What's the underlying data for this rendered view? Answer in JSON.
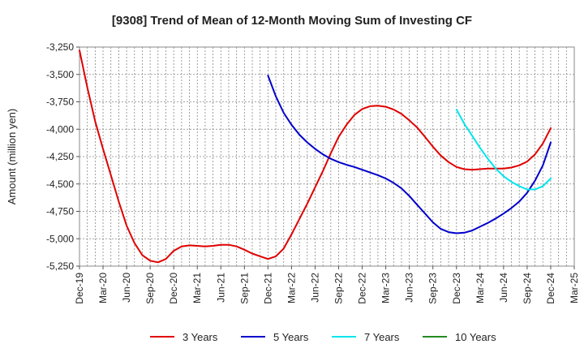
{
  "chart_data": {
    "type": "line",
    "title": "[9308]  Trend of Mean of 12-Month Moving Sum of Investing CF",
    "xlabel": "",
    "ylabel": "Amount (million yen)",
    "ylim": [
      -5250,
      -3250
    ],
    "yticks": [
      -3250,
      -3500,
      -3750,
      -4000,
      -4250,
      -4500,
      -4750,
      -5000,
      -5250
    ],
    "ytick_labels": [
      "-3,250",
      "-3,500",
      "-3,750",
      "-4,000",
      "-4,250",
      "-4,500",
      "-4,750",
      "-5,000",
      "-5,250"
    ],
    "x_start": "2019-12",
    "x_end": "2025-03",
    "xtick_labels": [
      "Dec-19",
      "Mar-20",
      "Jun-20",
      "Sep-20",
      "Dec-20",
      "Mar-21",
      "Jun-21",
      "Sep-21",
      "Dec-21",
      "Mar-22",
      "Jun-22",
      "Sep-22",
      "Dec-22",
      "Mar-23",
      "Jun-23",
      "Sep-23",
      "Dec-23",
      "Mar-24",
      "Jun-24",
      "Sep-24",
      "Dec-24",
      "Mar-25"
    ],
    "grid": true,
    "legend_position": "bottom",
    "series": [
      {
        "name": "3 Years",
        "color": "#e00000",
        "x": [
          "2019-12",
          "2020-01",
          "2020-02",
          "2020-03",
          "2020-04",
          "2020-05",
          "2020-06",
          "2020-07",
          "2020-08",
          "2020-09",
          "2020-10",
          "2020-11",
          "2020-12",
          "2021-01",
          "2021-02",
          "2021-03",
          "2021-04",
          "2021-05",
          "2021-06",
          "2021-07",
          "2021-08",
          "2021-09",
          "2021-10",
          "2021-11",
          "2021-12",
          "2022-01",
          "2022-02",
          "2022-03",
          "2022-04",
          "2022-05",
          "2022-06",
          "2022-07",
          "2022-08",
          "2022-09",
          "2022-10",
          "2022-11",
          "2022-12",
          "2023-01",
          "2023-02",
          "2023-03",
          "2023-04",
          "2023-05",
          "2023-06",
          "2023-07",
          "2023-08",
          "2023-09",
          "2023-10",
          "2023-11",
          "2023-12",
          "2024-01",
          "2024-02",
          "2024-03",
          "2024-04",
          "2024-05",
          "2024-06",
          "2024-07",
          "2024-08",
          "2024-09",
          "2024-10",
          "2024-11",
          "2024-12"
        ],
        "values": [
          -3280,
          -3620,
          -3930,
          -4180,
          -4420,
          -4660,
          -4880,
          -5040,
          -5150,
          -5200,
          -5215,
          -5185,
          -5110,
          -5070,
          -5060,
          -5065,
          -5070,
          -5065,
          -5055,
          -5055,
          -5070,
          -5100,
          -5135,
          -5160,
          -5185,
          -5160,
          -5090,
          -4960,
          -4820,
          -4680,
          -4530,
          -4380,
          -4220,
          -4070,
          -3960,
          -3870,
          -3815,
          -3790,
          -3785,
          -3795,
          -3820,
          -3860,
          -3920,
          -3985,
          -4070,
          -4160,
          -4240,
          -4300,
          -4345,
          -4365,
          -4370,
          -4365,
          -4360,
          -4360,
          -4360,
          -4350,
          -4330,
          -4295,
          -4230,
          -4130,
          -3990
        ]
      },
      {
        "name": "5 Years",
        "color": "#0000cc",
        "x": [
          "2021-12",
          "2022-01",
          "2022-02",
          "2022-03",
          "2022-04",
          "2022-05",
          "2022-06",
          "2022-07",
          "2022-08",
          "2022-09",
          "2022-10",
          "2022-11",
          "2022-12",
          "2023-01",
          "2023-02",
          "2023-03",
          "2023-04",
          "2023-05",
          "2023-06",
          "2023-07",
          "2023-08",
          "2023-09",
          "2023-10",
          "2023-11",
          "2023-12",
          "2024-01",
          "2024-02",
          "2024-03",
          "2024-04",
          "2024-05",
          "2024-06",
          "2024-07",
          "2024-08",
          "2024-09",
          "2024-10",
          "2024-11",
          "2024-12"
        ],
        "values": [
          -3510,
          -3700,
          -3850,
          -3960,
          -4050,
          -4120,
          -4180,
          -4230,
          -4270,
          -4300,
          -4325,
          -4345,
          -4370,
          -4395,
          -4420,
          -4450,
          -4490,
          -4540,
          -4610,
          -4690,
          -4770,
          -4850,
          -4910,
          -4940,
          -4950,
          -4945,
          -4925,
          -4890,
          -4855,
          -4815,
          -4770,
          -4720,
          -4660,
          -4580,
          -4470,
          -4330,
          -4120
        ]
      },
      {
        "name": "7 Years",
        "color": "#00e5ee",
        "x": [
          "2023-12",
          "2024-01",
          "2024-02",
          "2024-03",
          "2024-04",
          "2024-05",
          "2024-06",
          "2024-07",
          "2024-08",
          "2024-09",
          "2024-10",
          "2024-11",
          "2024-12"
        ],
        "values": [
          -3820,
          -3950,
          -4060,
          -4170,
          -4270,
          -4360,
          -4430,
          -4480,
          -4520,
          -4550,
          -4550,
          -4520,
          -4450
        ]
      },
      {
        "name": "10 Years",
        "color": "#228b22",
        "x": [],
        "values": []
      }
    ]
  }
}
